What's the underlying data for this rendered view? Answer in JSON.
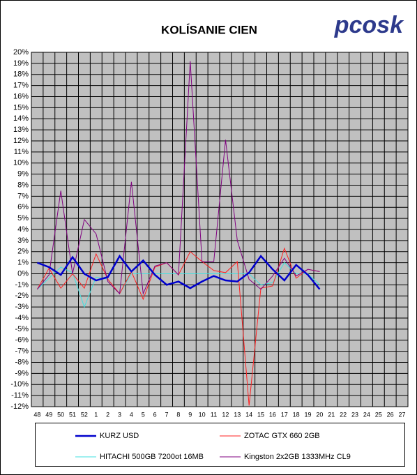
{
  "chart_data": {
    "type": "line",
    "title": "KOLÍSANIE CIEN",
    "logo": "pcosk",
    "categories": [
      "48",
      "49",
      "50",
      "51",
      "52",
      "1",
      "2",
      "3",
      "4",
      "5",
      "6",
      "7",
      "8",
      "9",
      "10",
      "11",
      "12",
      "13",
      "14",
      "15",
      "16",
      "17",
      "18",
      "19",
      "20",
      "21",
      "22",
      "23",
      "24",
      "25",
      "26",
      "27"
    ],
    "series": [
      {
        "name": "KURZ USD",
        "color": "#0000cc",
        "width": 2.5,
        "values": [
          1.0,
          0.6,
          -0.1,
          1.5,
          0,
          -0.6,
          -0.3,
          1.6,
          0.2,
          1.2,
          -0.1,
          -1.0,
          -0.7,
          -1.3,
          -0.7,
          -0.2,
          -0.6,
          -0.7,
          0.1,
          1.6,
          0.4,
          -0.6,
          0.8,
          -0.1,
          -1.4,
          null,
          null,
          null,
          null,
          null,
          null,
          null
        ]
      },
      {
        "name": "ZOTAC GTX 660 2GB",
        "color": "#ff2020",
        "width": 1,
        "values": [
          -1.4,
          0.5,
          -1.3,
          0,
          -1.3,
          1.8,
          -0.5,
          -1.8,
          0.2,
          -2.3,
          0.6,
          1.0,
          -0.1,
          2.0,
          1.1,
          0.3,
          0.1,
          1.1,
          -11.9,
          -1.3,
          -1.1,
          2.3,
          -0.4,
          0.4,
          0.2,
          null,
          null,
          null,
          null,
          null,
          null,
          null
        ]
      },
      {
        "name": "HITACHI 500GB 7200ot 16MB",
        "color": "#40e0e0",
        "width": 1,
        "values": [
          -1.4,
          -0.4,
          0.6,
          0.1,
          -3.0,
          -0.3,
          -0.5,
          -1.8,
          0,
          0,
          0,
          0,
          0,
          0,
          0,
          0,
          0,
          0,
          0,
          -1.0,
          -0.8,
          1.0,
          0,
          0,
          -1.0,
          null,
          null,
          null,
          null,
          null,
          null,
          null
        ]
      },
      {
        "name": "Kingston 2x2GB 1333MHz CL9",
        "color": "#800080",
        "width": 1,
        "values": [
          -1.4,
          -0.1,
          7.5,
          0,
          4.9,
          3.6,
          -0.7,
          -1.8,
          8.3,
          -1.8,
          0.7,
          1.0,
          -0.1,
          19.2,
          1.1,
          1.1,
          12.1,
          3.0,
          -0.5,
          -1.4,
          -0.2,
          1.4,
          -0.2,
          0.4,
          0.2,
          null,
          null,
          null,
          null,
          null,
          null,
          null
        ]
      }
    ],
    "ylim": [
      -12,
      20
    ],
    "yticks": [
      {
        "value": -12,
        "label": "-12%"
      },
      {
        "value": -11,
        "label": "-11%"
      },
      {
        "value": -10,
        "label": "-10%"
      },
      {
        "value": -9,
        "label": "-9%"
      },
      {
        "value": -8,
        "label": "-8%"
      },
      {
        "value": -7,
        "label": "-7%"
      },
      {
        "value": -6,
        "label": "-6%"
      },
      {
        "value": -5,
        "label": "-5%"
      },
      {
        "value": -4,
        "label": "-4%"
      },
      {
        "value": -3,
        "label": "-3%"
      },
      {
        "value": -2,
        "label": "-2%"
      },
      {
        "value": -1,
        "label": "-1%"
      },
      {
        "value": 0,
        "label": "0%"
      },
      {
        "value": 1,
        "label": "1%"
      },
      {
        "value": 2,
        "label": "2%"
      },
      {
        "value": 3,
        "label": "3%"
      },
      {
        "value": 4,
        "label": "4%"
      },
      {
        "value": 5,
        "label": "5%"
      },
      {
        "value": 6,
        "label": "6%"
      },
      {
        "value": 7,
        "label": "7%"
      },
      {
        "value": 8,
        "label": "8%"
      },
      {
        "value": 9,
        "label": "9%"
      },
      {
        "value": 10,
        "label": "10%"
      },
      {
        "value": 11,
        "label": "11%"
      },
      {
        "value": 12,
        "label": "12%"
      },
      {
        "value": 13,
        "label": "13%"
      },
      {
        "value": 14,
        "label": "14%"
      },
      {
        "value": 15,
        "label": "15%"
      },
      {
        "value": 16,
        "label": "16%"
      },
      {
        "value": 17,
        "label": "17%"
      },
      {
        "value": 18,
        "label": "18%"
      },
      {
        "value": 19,
        "label": "19%"
      },
      {
        "value": 20,
        "label": "20%"
      }
    ],
    "grid": true,
    "legend": "bottom",
    "plot_background": "#c0c0c0"
  }
}
